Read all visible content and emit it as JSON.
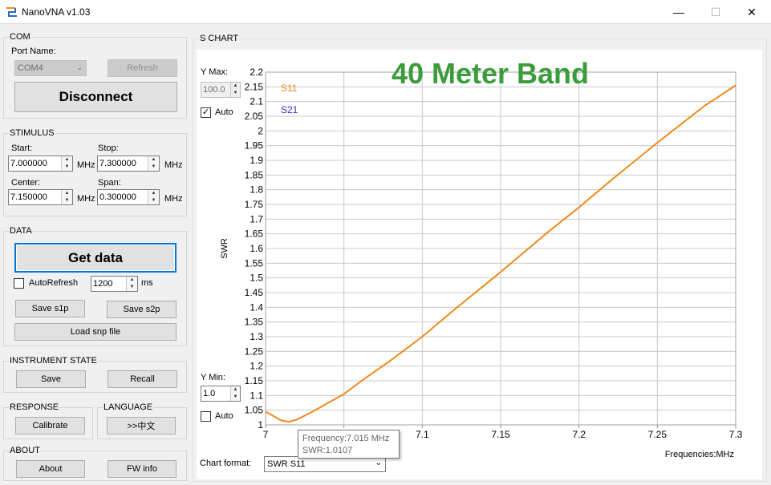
{
  "window": {
    "title": "NanoVNA v1.03",
    "minimize": "—",
    "maximize": "☐",
    "close": "✕"
  },
  "com": {
    "label": "COM",
    "port_name_label": "Port Name:",
    "port_value": "COM4",
    "refresh": "Refresh",
    "disconnect": "Disconnect"
  },
  "stimulus": {
    "label": "STIMULUS",
    "start_label": "Start:",
    "start_value": "7.000000",
    "stop_label": "Stop:",
    "stop_value": "7.300000",
    "center_label": "Center:",
    "center_value": "7.150000",
    "span_label": "Span:",
    "span_value": "0.300000",
    "unit": "MHz"
  },
  "data_section": {
    "label": "DATA",
    "get_data": "Get data",
    "autorefresh": "AutoRefresh",
    "interval": "1200",
    "interval_unit": "ms",
    "save_s1p": "Save s1p",
    "save_s2p": "Save s2p",
    "load_snp": "Load snp file"
  },
  "instrument": {
    "label": "INSTRUMENT STATE",
    "save": "Save",
    "recall": "Recall"
  },
  "response": {
    "label": "RESPONSE",
    "calibrate": "Calibrate"
  },
  "language": {
    "label": "LANGUAGE",
    "button": ">>中文"
  },
  "about": {
    "label": "ABOUT",
    "about": "About",
    "fw_info": "FW info"
  },
  "schart": {
    "label": "S CHART",
    "ymax_label": "Y Max:",
    "ymax_value": "100.0",
    "auto_label": "Auto",
    "ymin_label": "Y Min:",
    "ymin_value": "1.0",
    "format_label": "Chart format:",
    "format_value": "SWR S11",
    "tooltip_freq_label": "Frequency:",
    "tooltip_freq": "7.015 MHz",
    "tooltip_swr_label": "SWR:",
    "tooltip_swr": "1.0107"
  },
  "chart_data": {
    "type": "line",
    "title": "40 Meter Band",
    "title_color": "#3a9c3a",
    "xlabel": "Frequencies:MHz",
    "ylabel": "SWR",
    "xlim": [
      7.0,
      7.3
    ],
    "ylim": [
      1.0,
      2.2
    ],
    "x_ticks": [
      "7",
      "7.05",
      "7.1",
      "7.15",
      "7.2",
      "7.25",
      "7.3"
    ],
    "y_ticks": [
      "1",
      "1.05",
      "1.1",
      "1.15",
      "1.2",
      "1.25",
      "1.3",
      "1.35",
      "1.4",
      "1.45",
      "1.5",
      "1.55",
      "1.6",
      "1.65",
      "1.7",
      "1.75",
      "1.8",
      "1.85",
      "1.9",
      "1.95",
      "2",
      "2.05",
      "2.1",
      "2.15",
      "2.2"
    ],
    "grid": true,
    "series": [
      {
        "name": "S11",
        "color": "#f08a1c",
        "x": [
          7.0,
          7.005,
          7.01,
          7.015,
          7.02,
          7.03,
          7.04,
          7.05,
          7.06,
          7.08,
          7.1,
          7.12,
          7.15,
          7.18,
          7.2,
          7.22,
          7.25,
          7.28,
          7.3
        ],
        "y": [
          1.045,
          1.03,
          1.015,
          1.0107,
          1.018,
          1.045,
          1.075,
          1.105,
          1.145,
          1.22,
          1.3,
          1.39,
          1.52,
          1.655,
          1.74,
          1.83,
          1.96,
          2.085,
          2.155
        ]
      },
      {
        "name": "S21",
        "color": "#2b2bd0",
        "x": [],
        "y": []
      }
    ],
    "legend": "top-left"
  }
}
